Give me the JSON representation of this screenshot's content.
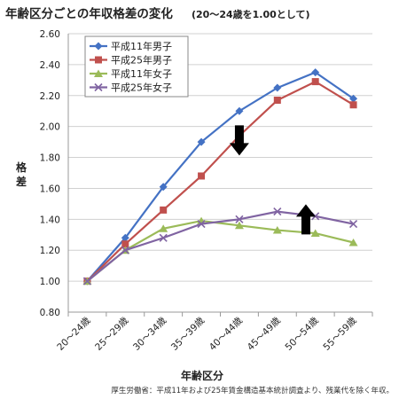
{
  "chart_data": {
    "type": "line",
    "title": "年齢区分ごとの年収格差の変化",
    "subtitle": "(20〜24歳を1.00として)",
    "xlabel": "年齢区分",
    "ylabel": "格差",
    "categories": [
      "20〜24歳",
      "25〜29歳",
      "30〜34歳",
      "35〜39歳",
      "40〜44歳",
      "45〜49歳",
      "50〜54歳",
      "55〜59歳"
    ],
    "ylim": [
      0.8,
      2.6
    ],
    "yticks": [
      "0.80",
      "1.00",
      "1.20",
      "1.40",
      "1.60",
      "1.80",
      "2.00",
      "2.20",
      "2.40",
      "2.60"
    ],
    "grid": true,
    "legend_position": "top-left",
    "series": [
      {
        "name": "平成11年男子",
        "color": "#4472C4",
        "marker": "diamond",
        "values": [
          1.0,
          1.28,
          1.61,
          1.9,
          2.1,
          2.25,
          2.35,
          2.18
        ]
      },
      {
        "name": "平成25年男子",
        "color": "#C0504D",
        "marker": "square",
        "values": [
          1.0,
          1.24,
          1.46,
          1.68,
          1.94,
          2.17,
          2.29,
          2.14
        ]
      },
      {
        "name": "平成11年女子",
        "color": "#9BBB59",
        "marker": "triangle",
        "values": [
          1.0,
          1.2,
          1.34,
          1.39,
          1.36,
          1.33,
          1.31,
          1.25
        ]
      },
      {
        "name": "平成25年女子",
        "color": "#8064A2",
        "marker": "x",
        "values": [
          1.0,
          1.2,
          1.28,
          1.37,
          1.4,
          1.45,
          1.42,
          1.37
        ]
      }
    ],
    "annotations": [
      {
        "type": "arrow",
        "direction": "down",
        "x_index": 4.0,
        "y_value": 1.91,
        "color": "#000000"
      },
      {
        "type": "arrow",
        "direction": "up",
        "x_index": 5.75,
        "y_value": 1.4,
        "color": "#000000"
      }
    ],
    "source_note": "厚生労働省：平成11年および25年賃金構造基本統計調査より、残業代を除く年収。"
  }
}
